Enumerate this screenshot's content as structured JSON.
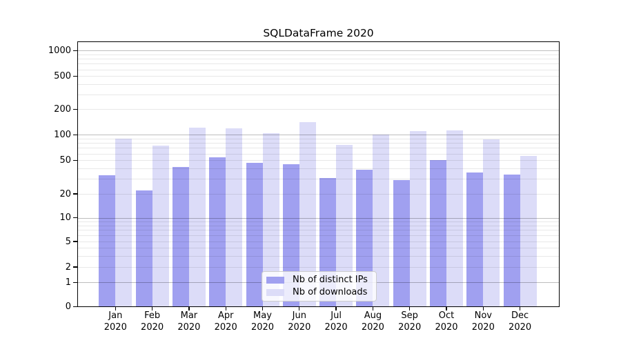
{
  "chart_data": {
    "type": "bar",
    "title": "SQLDataFrame 2020",
    "categories": [
      "Jan 2020",
      "Feb 2020",
      "Mar 2020",
      "Apr 2020",
      "May 2020",
      "Jun 2020",
      "Jul 2020",
      "Aug 2020",
      "Sep 2020",
      "Oct 2020",
      "Nov 2020",
      "Dec 2020"
    ],
    "series": [
      {
        "name": "Nb of distinct IPs",
        "color": "#a0a0f0",
        "values": [
          33,
          22,
          42,
          54,
          47,
          45,
          31,
          39,
          29,
          50,
          36,
          34
        ]
      },
      {
        "name": "Nb of downloads",
        "color": "#dcdcf8",
        "values": [
          90,
          74,
          122,
          120,
          104,
          141,
          76,
          101,
          111,
          113,
          88,
          56
        ]
      }
    ],
    "xlabel": "",
    "ylabel": "",
    "yscale": "symlog",
    "yticks": [
      0,
      1,
      2,
      5,
      10,
      20,
      50,
      100,
      200,
      500,
      1000
    ],
    "ylim": [
      0,
      1300
    ],
    "grid": "both",
    "legend_position": "lower center"
  }
}
